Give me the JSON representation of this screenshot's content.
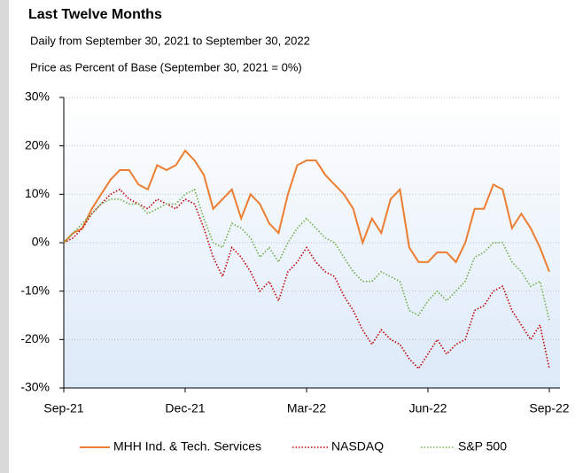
{
  "chart_data": {
    "type": "line",
    "title": "Last Twelve Months",
    "subtitle": "Daily from September 30, 2021 to September 30, 2022",
    "y_label": "Price as Percent of Base (September 30, 2021 = 0%)",
    "categories": [
      "Sep-21",
      null,
      null,
      null,
      null,
      null,
      null,
      null,
      null,
      null,
      null,
      null,
      null,
      "Dec-21",
      null,
      null,
      null,
      null,
      null,
      null,
      null,
      null,
      null,
      null,
      null,
      null,
      "Mar-22",
      null,
      null,
      null,
      null,
      null,
      null,
      null,
      null,
      null,
      null,
      null,
      null,
      "Jun-22",
      null,
      null,
      null,
      null,
      null,
      null,
      null,
      null,
      null,
      null,
      null,
      null,
      "Sep-22"
    ],
    "ylim": [
      -30,
      30
    ],
    "yticks": [
      {
        "value": -30,
        "label": "-30%"
      },
      {
        "value": -20,
        "label": "-20%"
      },
      {
        "value": -10,
        "label": "-10%"
      },
      {
        "value": 0,
        "label": "0%"
      },
      {
        "value": 10,
        "label": "10%"
      },
      {
        "value": 20,
        "label": "20%"
      },
      {
        "value": 30,
        "label": "30%"
      }
    ],
    "grid": true,
    "legend": "bottom",
    "series": [
      {
        "name": "MHH Ind. & Tech. Services",
        "color": "#ed7d31",
        "style": "solid",
        "values": [
          0,
          2,
          3,
          7,
          10,
          13,
          15,
          15,
          12,
          11,
          16,
          15,
          16,
          19,
          17,
          14,
          7,
          9,
          11,
          5,
          10,
          8,
          4,
          2,
          10,
          16,
          17,
          17,
          14,
          12,
          10,
          7,
          0,
          5,
          2,
          9,
          11,
          -1,
          -4,
          -4,
          -2,
          -2,
          -4,
          0,
          7,
          7,
          12,
          11,
          3,
          6,
          3,
          -1,
          -6
        ]
      },
      {
        "name": "NASDAQ",
        "color": "#c00000",
        "style": "dotted",
        "values": [
          0,
          1,
          3,
          6,
          8,
          10,
          11,
          9,
          8,
          7,
          9,
          8,
          7,
          9,
          8,
          3,
          -3,
          -7,
          -1,
          -3,
          -6,
          -10,
          -8,
          -12,
          -6,
          -4,
          -1,
          -4,
          -6,
          -7,
          -11,
          -14,
          -18,
          -21,
          -18,
          -20,
          -21,
          -24,
          -26,
          -23,
          -20,
          -23,
          -21,
          -20,
          -14,
          -13,
          -10,
          -9,
          -14,
          -17,
          -20,
          -17,
          -26
        ]
      },
      {
        "name": "S&P 500",
        "color": "#70ad47",
        "style": "dotted",
        "values": [
          0,
          2,
          4,
          6,
          8,
          9,
          9,
          8,
          8,
          6,
          7,
          8,
          8,
          10,
          11,
          5,
          0,
          -1,
          4,
          3,
          1,
          -3,
          -1,
          -4,
          0,
          3,
          5,
          3,
          1,
          0,
          -3,
          -6,
          -8,
          -8,
          -6,
          -7,
          -8,
          -14,
          -15,
          -12,
          -10,
          -12,
          -10,
          -8,
          -3,
          -2,
          0,
          0,
          -4,
          -6,
          -9,
          -8,
          -16
        ]
      }
    ]
  }
}
